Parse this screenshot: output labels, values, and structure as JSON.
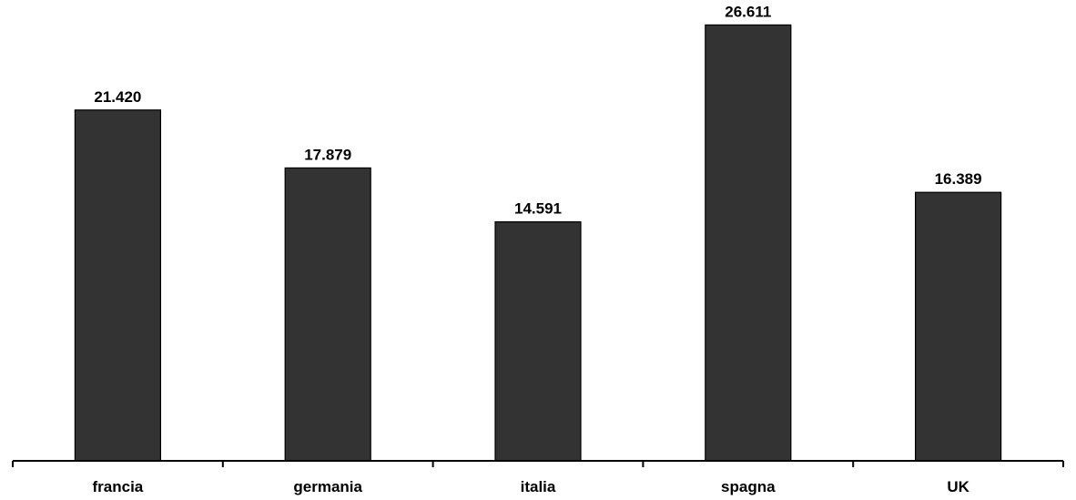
{
  "chart_data": {
    "type": "bar",
    "categories": [
      "francia",
      "germania",
      "italia",
      "spagna",
      "UK"
    ],
    "values": [
      21420,
      17879,
      14591,
      26611,
      16389
    ],
    "data_labels": [
      "21.420",
      "17.879",
      "14.591",
      "26.611",
      "16.389"
    ],
    "title": "",
    "xlabel": "",
    "ylabel": "",
    "ylim": [
      0,
      28000
    ],
    "grid": false,
    "legend": "none",
    "colors": {
      "bar_fill": "#333333",
      "bar_stroke": "#000000",
      "axis": "#000000",
      "text": "#000000",
      "background": "#ffffff"
    }
  }
}
